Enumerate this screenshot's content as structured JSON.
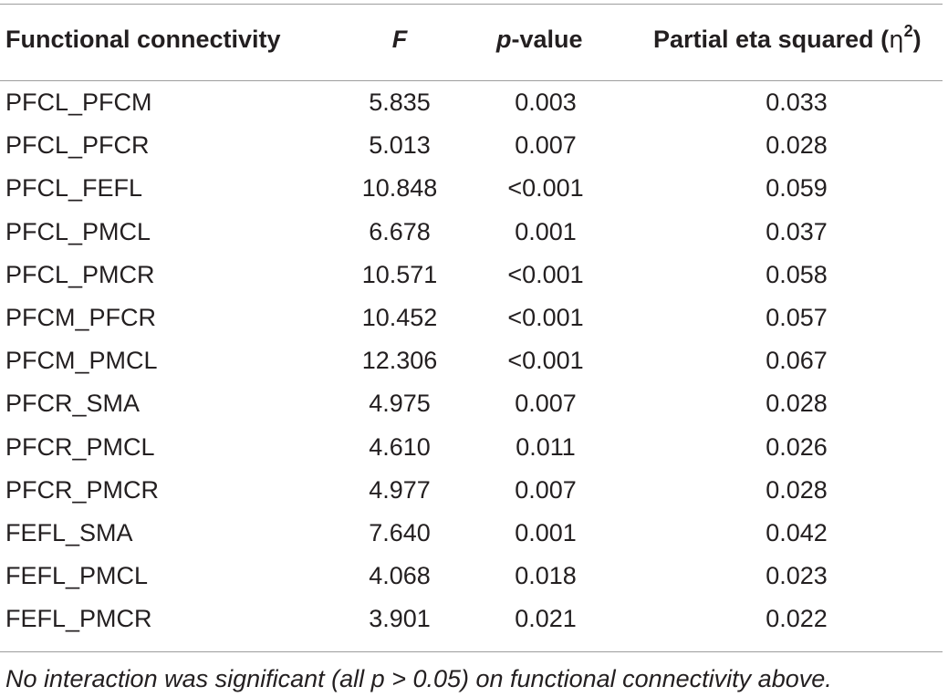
{
  "table": {
    "headers": {
      "col0": "Functional connectivity",
      "col1_italic": "F",
      "col2_italic": "p",
      "col2_rest": "-value",
      "col3_text": "Partial eta squared (",
      "col3_symbol": "η",
      "col3_sup": "2",
      "col3_close": ")"
    },
    "rows": [
      {
        "name": "PFCL_PFCM",
        "f": "5.835",
        "p": "0.003",
        "eta": "0.033"
      },
      {
        "name": "PFCL_PFCR",
        "f": "5.013",
        "p": "0.007",
        "eta": "0.028"
      },
      {
        "name": "PFCL_FEFL",
        "f": "10.848",
        "p": "<0.001",
        "eta": "0.059"
      },
      {
        "name": "PFCL_PMCL",
        "f": "6.678",
        "p": "0.001",
        "eta": "0.037"
      },
      {
        "name": "PFCL_PMCR",
        "f": "10.571",
        "p": "<0.001",
        "eta": "0.058"
      },
      {
        "name": "PFCM_PFCR",
        "f": "10.452",
        "p": "<0.001",
        "eta": "0.057"
      },
      {
        "name": "PFCM_PMCL",
        "f": "12.306",
        "p": "<0.001",
        "eta": "0.067"
      },
      {
        "name": "PFCR_SMA",
        "f": "4.975",
        "p": "0.007",
        "eta": "0.028"
      },
      {
        "name": "PFCR_PMCL",
        "f": "4.610",
        "p": "0.011",
        "eta": "0.026"
      },
      {
        "name": "PFCR_PMCR",
        "f": "4.977",
        "p": "0.007",
        "eta": "0.028"
      },
      {
        "name": "FEFL_SMA",
        "f": "7.640",
        "p": "0.001",
        "eta": "0.042"
      },
      {
        "name": "FEFL_PMCL",
        "f": "4.068",
        "p": "0.018",
        "eta": "0.023"
      },
      {
        "name": "FEFL_PMCR",
        "f": "3.901",
        "p": "0.021",
        "eta": "0.022"
      }
    ],
    "footnote": "No interaction was significant (all p > 0.05) on functional connectivity above."
  }
}
